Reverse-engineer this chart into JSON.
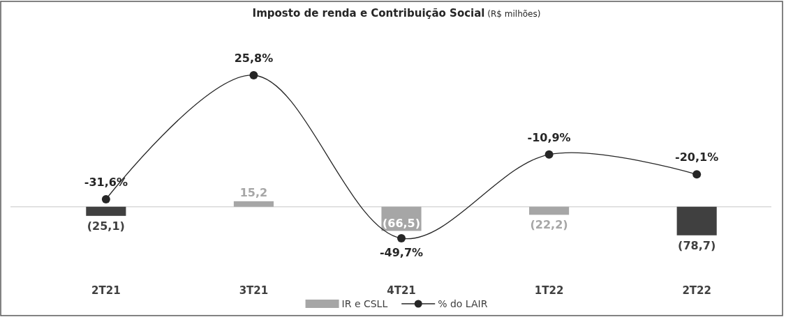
{
  "chart_data": {
    "type": "bar",
    "title": "Imposto de renda e Contribuição Social",
    "subtitle": "(R$ milhões)",
    "categories": [
      "2T21",
      "3T21",
      "4T21",
      "1T22",
      "2T22"
    ],
    "series": [
      {
        "name": "IR e CSLL",
        "color": "#a6a6a6",
        "colors": [
          "#404040",
          "#a6a6a6",
          "#a6a6a6",
          "#a6a6a6",
          "#404040"
        ],
        "values": [
          -25.1,
          15.2,
          -66.5,
          -22.2,
          -78.7
        ],
        "value_labels": [
          "(25,1)",
          "15,2",
          "(66,5)",
          "(22,2)",
          "(78,7)"
        ]
      },
      {
        "name": "% do LAIR",
        "type": "line",
        "axis": "y2",
        "color": "#262626",
        "marker": "circle",
        "values": [
          -31.6,
          25.8,
          -49.7,
          -10.9,
          -20.1
        ],
        "value_labels": [
          "-31,6%",
          "25,8%",
          "-49,7%",
          "-10,9%",
          "-20,1%"
        ]
      }
    ],
    "ylim": [
      -300,
      566
    ],
    "y2lim": [
      -85.5,
      60
    ],
    "tick_labels": "x",
    "grid": false,
    "legend": "bottom"
  }
}
